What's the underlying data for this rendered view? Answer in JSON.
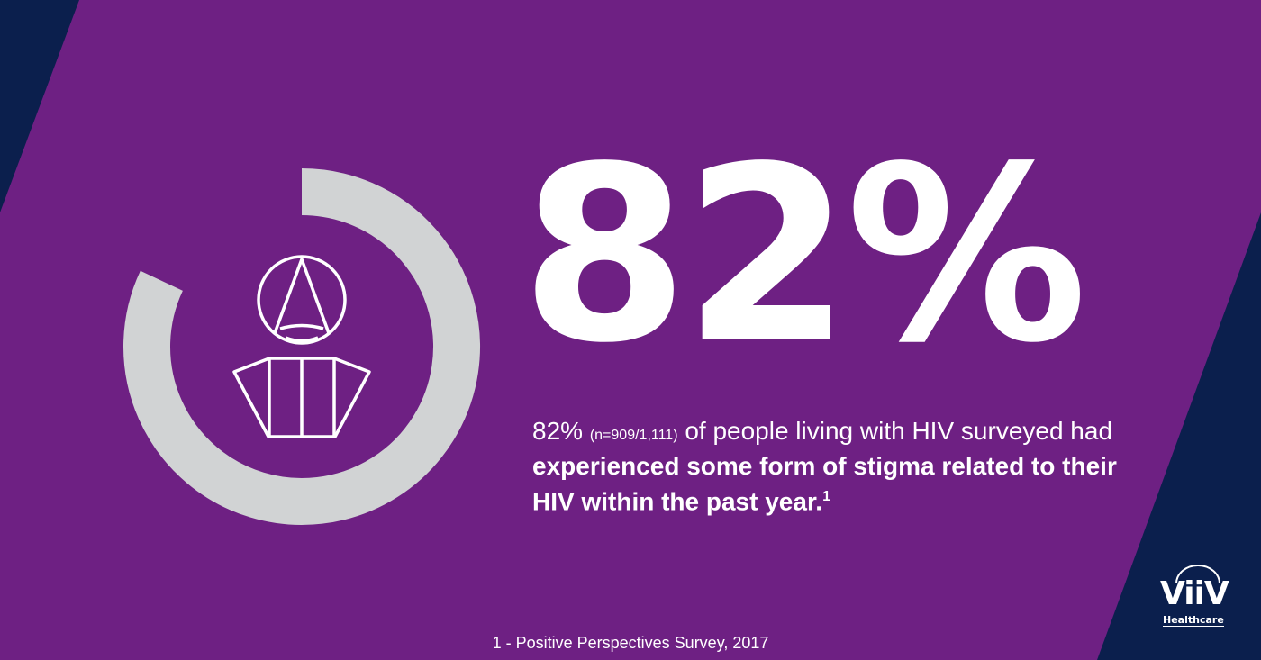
{
  "colors": {
    "navy": "#0b1f4d",
    "purple": "#6e2083",
    "ring": "#d1d3d4",
    "text": "#ffffff"
  },
  "ring": {
    "filled_fraction": 0.82
  },
  "icon": "person-outline-icon",
  "stat": {
    "value": "82%"
  },
  "description": {
    "lead_value": "82%",
    "sample_size": "(n=909/1,111)",
    "plain_text": "of people living with HIV surveyed had",
    "bold_text": "experienced some form of stigma related to their HIV within the past year.",
    "footnote_ref": "1"
  },
  "footnote": {
    "text": "1 - Positive Perspectives Survey, 2017"
  },
  "logo": {
    "name": "ViiV",
    "subtitle": "Healthcare"
  }
}
